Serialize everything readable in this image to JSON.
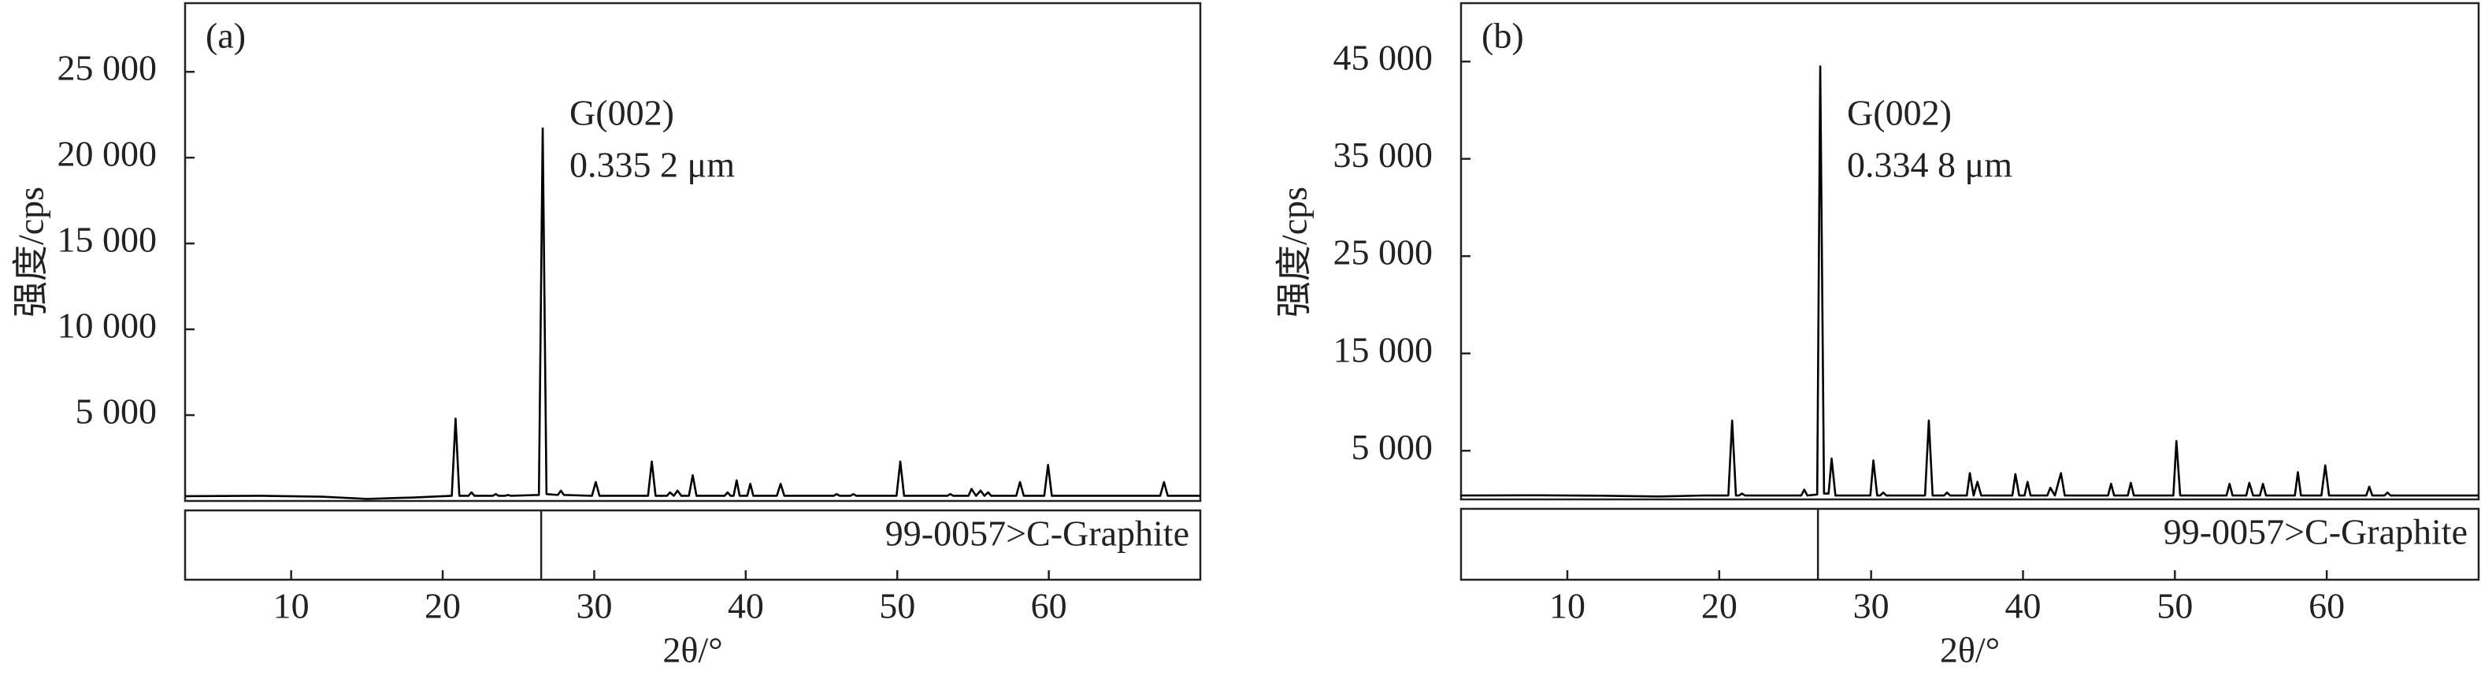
{
  "chart_data": [
    {
      "type": "line",
      "panel": "(a)",
      "annotations": [
        "G(002)",
        "0.335 2 μm"
      ],
      "x_label": "2θ/°",
      "y_label": "强度/cps",
      "color": "#000000",
      "x": [
        3,
        8,
        12,
        15,
        18,
        20.6,
        20.85,
        21.1,
        21.7,
        21.9,
        22.1,
        23.3,
        23.5,
        23.7,
        24.1,
        24.3,
        24.5,
        26.35,
        26.6,
        26.85,
        27.6,
        27.8,
        28.0,
        29.85,
        30.1,
        30.35,
        33.55,
        33.8,
        34.05,
        34.8,
        35.0,
        35.25,
        35.5,
        35.75,
        36.25,
        36.5,
        36.75,
        38.6,
        38.8,
        39.0,
        39.2,
        39.4,
        39.6,
        40.1,
        40.3,
        40.5,
        42.05,
        42.3,
        42.55,
        45.8,
        46.0,
        46.2,
        46.9,
        47.1,
        47.3,
        49.95,
        50.2,
        50.45,
        53.3,
        53.5,
        53.7,
        54.7,
        54.9,
        55.2,
        55.5,
        55.75,
        56.0,
        56.2,
        57.85,
        58.1,
        58.35,
        59.7,
        59.95,
        60.2,
        64,
        67.35,
        67.6,
        67.85,
        70
      ],
      "values": [
        280,
        300,
        250,
        120,
        200,
        300,
        4800,
        300,
        300,
        500,
        300,
        300,
        400,
        300,
        300,
        350,
        300,
        350,
        21700,
        400,
        350,
        600,
        350,
        300,
        1100,
        300,
        300,
        2300,
        300,
        300,
        500,
        300,
        600,
        300,
        300,
        1500,
        300,
        300,
        500,
        300,
        300,
        1200,
        300,
        300,
        1000,
        300,
        300,
        1000,
        300,
        300,
        400,
        300,
        300,
        400,
        300,
        300,
        2300,
        300,
        300,
        400,
        300,
        300,
        700,
        300,
        600,
        300,
        500,
        300,
        300,
        1100,
        300,
        300,
        2100,
        300,
        300,
        300,
        1100,
        300,
        300
      ],
      "xlim": [
        3,
        70
      ],
      "xticks": [
        10,
        20,
        30,
        40,
        50,
        60
      ],
      "ylim": [
        0,
        29000
      ],
      "yticks": [
        {
          "value": 5000,
          "label": "5 000"
        },
        {
          "value": 10000,
          "label": "10 000"
        },
        {
          "value": 15000,
          "label": "15 000"
        },
        {
          "value": 20000,
          "label": "20 000"
        },
        {
          "value": 25000,
          "label": "25 000"
        }
      ],
      "reference": {
        "label": "99-0057>C-Graphite",
        "peaks": [
          26.5
        ]
      }
    },
    {
      "type": "line",
      "panel": "(b)",
      "annotations": [
        "G(002)",
        "0.334 8 μm"
      ],
      "x_label": "2θ/°",
      "y_label": "强度/cps",
      "color": "#000000",
      "x": [
        3,
        8,
        12,
        16,
        19,
        20.6,
        20.85,
        21.1,
        21.3,
        21.5,
        21.7,
        25.4,
        25.6,
        25.8,
        26.45,
        26.65,
        26.9,
        27.2,
        27.4,
        27.65,
        29.95,
        30.15,
        30.4,
        30.6,
        30.8,
        31.0,
        33.55,
        33.8,
        34.05,
        34.8,
        35.0,
        35.2,
        36.3,
        36.5,
        36.75,
        37.0,
        37.25,
        39.3,
        39.5,
        39.75,
        40.1,
        40.3,
        40.5,
        41.6,
        41.8,
        42.1,
        42.5,
        42.75,
        45.6,
        45.8,
        46.0,
        46.9,
        47.1,
        47.3,
        49.9,
        50.1,
        50.35,
        53.4,
        53.6,
        53.8,
        54.7,
        54.9,
        55.15,
        55.6,
        55.8,
        56.0,
        57.9,
        58.1,
        58.3,
        59.65,
        59.9,
        60.15,
        62.6,
        62.8,
        63.0,
        63.8,
        64.0,
        64.2,
        70
      ],
      "values": [
        400,
        420,
        380,
        300,
        400,
        400,
        8100,
        400,
        400,
        600,
        400,
        400,
        1000,
        400,
        500,
        44500,
        600,
        600,
        4200,
        400,
        400,
        4000,
        400,
        400,
        700,
        400,
        400,
        8100,
        400,
        400,
        700,
        400,
        400,
        2700,
        400,
        1800,
        400,
        400,
        2600,
        400,
        400,
        1800,
        400,
        400,
        1200,
        400,
        2700,
        400,
        400,
        1600,
        400,
        400,
        1700,
        400,
        400,
        6000,
        400,
        400,
        1600,
        400,
        400,
        1700,
        400,
        400,
        1600,
        400,
        400,
        2800,
        400,
        400,
        3500,
        400,
        400,
        1300,
        400,
        400,
        700,
        400,
        400
      ],
      "xlim": [
        3,
        70
      ],
      "xticks": [
        10,
        20,
        30,
        40,
        50,
        60
      ],
      "ylim": [
        0,
        51000
      ],
      "yticks": [
        {
          "value": 5000,
          "label": "5 000"
        },
        {
          "value": 15000,
          "label": "15 000"
        },
        {
          "value": 25000,
          "label": "25 000"
        },
        {
          "value": 35000,
          "label": "35 000"
        },
        {
          "value": 45000,
          "label": "45 000"
        }
      ],
      "reference": {
        "label": "99-0057>C-Graphite",
        "peaks": [
          26.5
        ]
      }
    }
  ]
}
